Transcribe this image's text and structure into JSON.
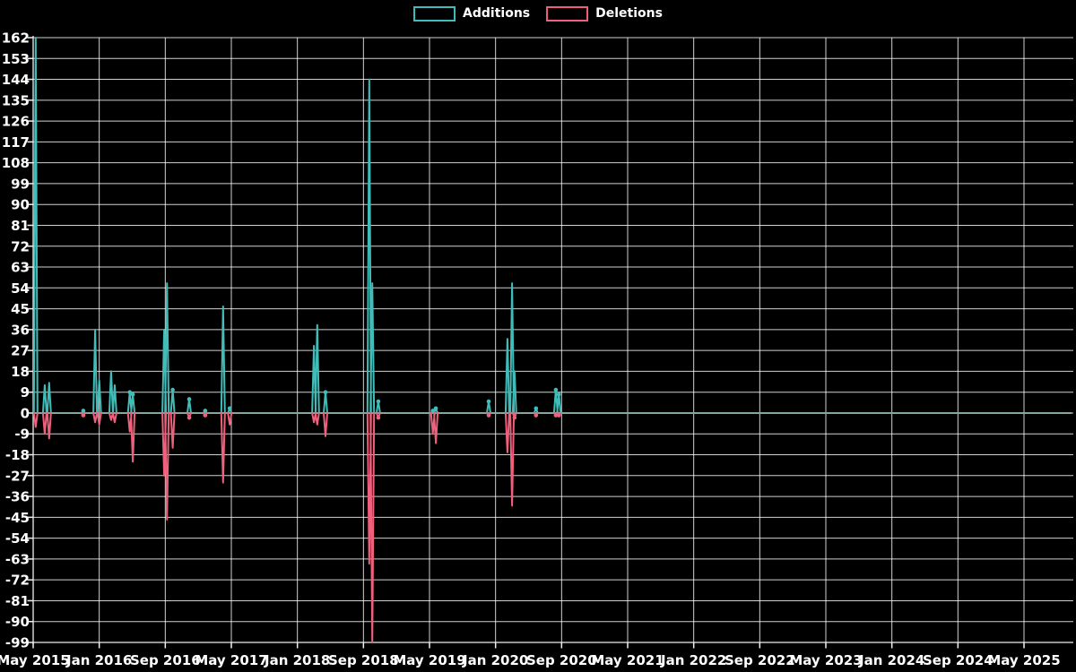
{
  "legend": {
    "additions_label": "Additions",
    "deletions_label": "Deletions"
  },
  "colors": {
    "background": "#000000",
    "additions": "#41bdb9",
    "deletions": "#ef607c",
    "zero_baseline": "#84a79e",
    "grid": "rgba(255,255,255,0.82)",
    "axis": "#f0f0f0",
    "tick_text": "#ffffff"
  },
  "chart_data": {
    "type": "line",
    "title": "",
    "xlabel": "",
    "ylabel": "",
    "grid": true,
    "legend_position": "top-center",
    "y_axis": {
      "min": -99,
      "max": 162,
      "tick_step": 9,
      "tick_labels": [
        "162",
        "153",
        "144",
        "135",
        "126",
        "117",
        "108",
        "99",
        "90",
        "81",
        "72",
        "63",
        "54",
        "45",
        "36",
        "27",
        "18",
        "9",
        "0",
        "-9",
        "-18",
        "-27",
        "-36",
        "-45",
        "-54",
        "-63",
        "-72",
        "-81",
        "-90",
        "-99"
      ]
    },
    "x_axis": {
      "start": "2015-05",
      "end": "2025-05",
      "tick_interval_months": 8,
      "tick_labels": [
        "May 2015",
        "Jan 2016",
        "Sep 2016",
        "May 2017",
        "Jan 2018",
        "Sep 2018",
        "May 2019",
        "Jan 2020",
        "Sep 2020",
        "May 2021",
        "Jan 2022",
        "Sep 2022",
        "May 2023",
        "Jan 2024",
        "Sep 2024",
        "May 2025"
      ]
    },
    "series_names": [
      "Additions",
      "Deletions"
    ],
    "baseline_note": "Both series are 0 for every week not listed in events",
    "events": [
      {
        "date": "2015-05-10",
        "additions": 162,
        "deletions": -6
      },
      {
        "date": "2015-06-13",
        "additions": 12,
        "deletions": -9
      },
      {
        "date": "2015-06-29",
        "additions": 13,
        "deletions": -11
      },
      {
        "date": "2015-11-03",
        "additions": 1,
        "deletions": -1
      },
      {
        "date": "2015-12-16",
        "additions": 36,
        "deletions": -4
      },
      {
        "date": "2016-01-01",
        "additions": 14,
        "deletions": -5
      },
      {
        "date": "2016-02-14",
        "additions": 18,
        "deletions": -3
      },
      {
        "date": "2016-02-27",
        "additions": 12,
        "deletions": -4
      },
      {
        "date": "2016-04-22",
        "additions": 9,
        "deletions": -8
      },
      {
        "date": "2016-05-03",
        "additions": 8,
        "deletions": -21
      },
      {
        "date": "2016-08-27",
        "additions": 36,
        "deletions": -27
      },
      {
        "date": "2016-09-07",
        "additions": 56,
        "deletions": -46
      },
      {
        "date": "2016-09-28",
        "additions": 10,
        "deletions": -15
      },
      {
        "date": "2016-11-28",
        "additions": 6,
        "deletions": -2
      },
      {
        "date": "2017-01-26",
        "additions": 1,
        "deletions": -1
      },
      {
        "date": "2017-04-01",
        "additions": 46,
        "deletions": -30
      },
      {
        "date": "2017-04-25",
        "additions": 2,
        "deletions": -5
      },
      {
        "date": "2018-03-01",
        "additions": 29,
        "deletions": -4
      },
      {
        "date": "2018-03-13",
        "additions": 38,
        "deletions": -5
      },
      {
        "date": "2018-04-13",
        "additions": 9,
        "deletions": -10
      },
      {
        "date": "2018-09-22",
        "additions": 144,
        "deletions": -65
      },
      {
        "date": "2018-10-03",
        "additions": 56,
        "deletions": -99
      },
      {
        "date": "2018-10-25",
        "additions": 5,
        "deletions": -2
      },
      {
        "date": "2019-05-13",
        "additions": 1,
        "deletions": -9
      },
      {
        "date": "2019-05-24",
        "additions": 2,
        "deletions": -13
      },
      {
        "date": "2019-12-06",
        "additions": 5,
        "deletions": -1
      },
      {
        "date": "2020-02-14",
        "additions": 32,
        "deletions": -17
      },
      {
        "date": "2020-03-01",
        "additions": 56,
        "deletions": -40
      },
      {
        "date": "2020-03-10",
        "additions": 18,
        "deletions": -2
      },
      {
        "date": "2020-05-28",
        "additions": 2,
        "deletions": -1
      },
      {
        "date": "2020-08-10",
        "additions": 10,
        "deletions": -1
      },
      {
        "date": "2020-08-21",
        "additions": 8,
        "deletions": -1
      }
    ]
  }
}
